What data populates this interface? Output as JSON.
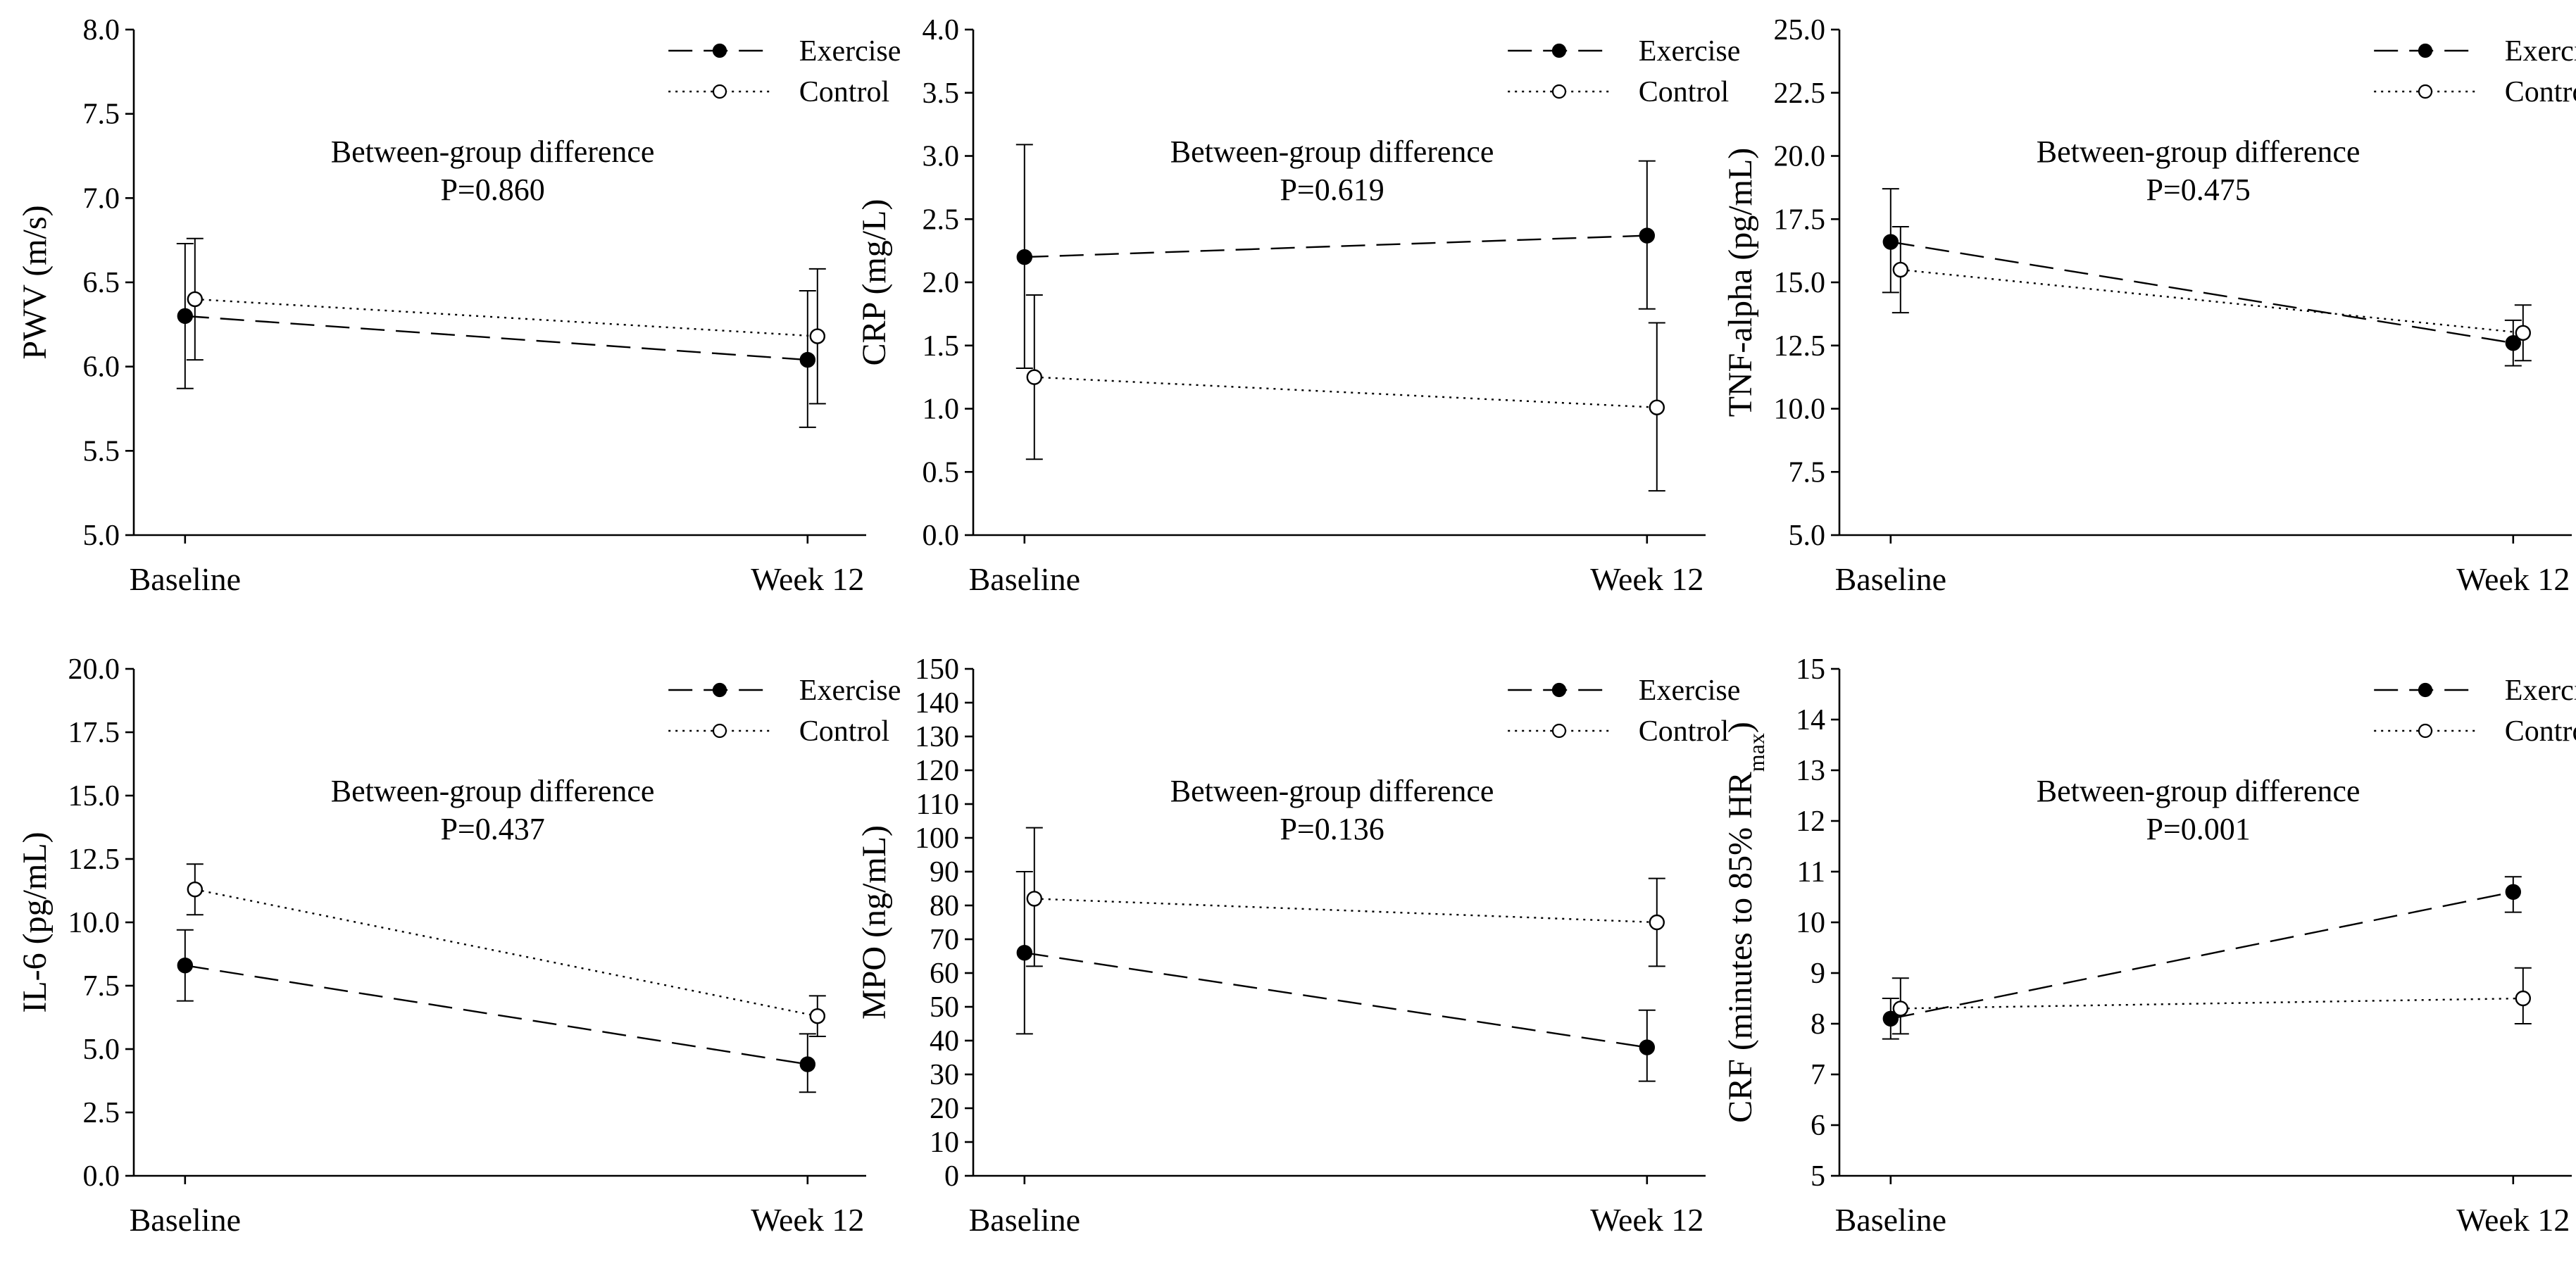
{
  "chart_data": [
    {
      "type": "line",
      "ylabel": "PWV (m/s)",
      "categories": [
        "Baseline",
        "Week 12"
      ],
      "ylim": [
        5.0,
        8.0
      ],
      "yticks": [
        "5.0",
        "5.5",
        "6.0",
        "6.5",
        "7.0",
        "7.5",
        "8.0"
      ],
      "legend": "top-right",
      "annotation": [
        "Between-group difference",
        "P=0.860"
      ],
      "series": [
        {
          "name": "Exercise",
          "style": "dashed",
          "marker": "filled",
          "values": [
            6.3,
            6.04
          ],
          "err_low": [
            5.87,
            5.64
          ],
          "err_high": [
            6.73,
            6.45
          ]
        },
        {
          "name": "Control",
          "style": "dotted",
          "marker": "open",
          "values": [
            6.4,
            6.18
          ],
          "err_low": [
            6.04,
            5.78
          ],
          "err_high": [
            6.76,
            6.58
          ]
        }
      ]
    },
    {
      "type": "line",
      "ylabel": "CRP (mg/L)",
      "categories": [
        "Baseline",
        "Week 12"
      ],
      "ylim": [
        0.0,
        4.0
      ],
      "yticks": [
        "0.0",
        "0.5",
        "1.0",
        "1.5",
        "2.0",
        "2.5",
        "3.0",
        "3.5",
        "4.0"
      ],
      "legend": "top-right",
      "annotation": [
        "Between-group difference",
        "P=0.619"
      ],
      "series": [
        {
          "name": "Exercise",
          "style": "dashed",
          "marker": "filled",
          "values": [
            2.2,
            2.37
          ],
          "err_low": [
            1.32,
            1.79
          ],
          "err_high": [
            3.09,
            2.96
          ]
        },
        {
          "name": "Control",
          "style": "dotted",
          "marker": "open",
          "values": [
            1.25,
            1.01
          ],
          "err_low": [
            0.6,
            0.35
          ],
          "err_high": [
            1.9,
            1.68
          ]
        }
      ]
    },
    {
      "type": "line",
      "ylabel": "TNF-alpha (pg/mL)",
      "categories": [
        "Baseline",
        "Week 12"
      ],
      "ylim": [
        5.0,
        25.0
      ],
      "yticks": [
        "5.0",
        "7.5",
        "10.0",
        "12.5",
        "15.0",
        "17.5",
        "20.0",
        "22.5",
        "25.0"
      ],
      "legend": "top-right",
      "annotation": [
        "Between-group difference",
        "P=0.475"
      ],
      "series": [
        {
          "name": "Exercise",
          "style": "dashed",
          "marker": "filled",
          "values": [
            16.6,
            12.6
          ],
          "err_low": [
            14.6,
            11.7
          ],
          "err_high": [
            18.7,
            13.5
          ]
        },
        {
          "name": "Control",
          "style": "dotted",
          "marker": "open",
          "values": [
            15.5,
            13.0
          ],
          "err_low": [
            13.8,
            11.9
          ],
          "err_high": [
            17.2,
            14.1
          ]
        }
      ]
    },
    {
      "type": "line",
      "ylabel": "IL-6 (pg/mL)",
      "categories": [
        "Baseline",
        "Week 12"
      ],
      "ylim": [
        0.0,
        20.0
      ],
      "yticks": [
        "0.0",
        "2.5",
        "5.0",
        "7.5",
        "10.0",
        "12.5",
        "15.0",
        "17.5",
        "20.0"
      ],
      "legend": "top-right",
      "annotation": [
        "Between-group difference",
        "P=0.437"
      ],
      "series": [
        {
          "name": "Exercise",
          "style": "dashed",
          "marker": "filled",
          "values": [
            8.3,
            4.4
          ],
          "err_low": [
            6.9,
            3.3
          ],
          "err_high": [
            9.7,
            5.6
          ]
        },
        {
          "name": "Control",
          "style": "dotted",
          "marker": "open",
          "values": [
            11.3,
            6.3
          ],
          "err_low": [
            10.3,
            5.5
          ],
          "err_high": [
            12.3,
            7.1
          ]
        }
      ]
    },
    {
      "type": "line",
      "ylabel": "MPO (ng/mL)",
      "categories": [
        "Baseline",
        "Week 12"
      ],
      "ylim": [
        0,
        150
      ],
      "yticks": [
        "0",
        "10",
        "20",
        "30",
        "40",
        "50",
        "60",
        "70",
        "80",
        "90",
        "100",
        "110",
        "120",
        "130",
        "140",
        "150"
      ],
      "legend": "top-right",
      "annotation": [
        "Between-group difference",
        "P=0.136"
      ],
      "series": [
        {
          "name": "Exercise",
          "style": "dashed",
          "marker": "filled",
          "values": [
            66,
            38
          ],
          "err_low": [
            42,
            28
          ],
          "err_high": [
            90,
            49
          ]
        },
        {
          "name": "Control",
          "style": "dotted",
          "marker": "open",
          "values": [
            82,
            75
          ],
          "err_low": [
            62,
            62
          ],
          "err_high": [
            103,
            88
          ]
        }
      ]
    },
    {
      "type": "line",
      "ylabel": "CRF (minutes to 85% HR",
      "ylabel_subscript": "max",
      "ylabel_suffix": ")",
      "categories": [
        "Baseline",
        "Week 12"
      ],
      "ylim": [
        5,
        15
      ],
      "yticks": [
        "5",
        "6",
        "7",
        "8",
        "9",
        "10",
        "11",
        "12",
        "13",
        "14",
        "15"
      ],
      "legend": "top-right",
      "annotation": [
        "Between-group difference",
        "P=0.001"
      ],
      "series": [
        {
          "name": "Exercise",
          "style": "dashed",
          "marker": "filled",
          "values": [
            8.1,
            10.6
          ],
          "err_low": [
            7.7,
            10.2
          ],
          "err_high": [
            8.5,
            10.9
          ]
        },
        {
          "name": "Control",
          "style": "dotted",
          "marker": "open",
          "values": [
            8.3,
            8.5
          ],
          "err_low": [
            7.8,
            8.0
          ],
          "err_high": [
            8.9,
            9.1
          ]
        }
      ]
    }
  ]
}
